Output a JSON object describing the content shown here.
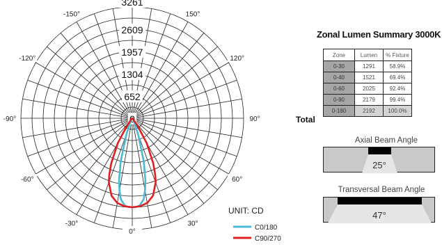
{
  "chart_data": {
    "type": "polar",
    "unit_label": "UNIT: CD",
    "radial_ticks": [
      3261,
      2609,
      1957,
      1304,
      652,
      0
    ],
    "angle_labels": [
      "-150°",
      "150°",
      "-120°",
      "120°",
      "-90°",
      "90°",
      "-60°",
      "60°",
      "-30°",
      "30°",
      "0°"
    ],
    "angle_values": [
      -150,
      150,
      -120,
      120,
      -90,
      90,
      -60,
      60,
      -30,
      30,
      0
    ],
    "series": [
      {
        "name": "C0/180",
        "color": "#4ab8d6",
        "points": [
          [
            -90,
            0
          ],
          [
            -60,
            0
          ],
          [
            -45,
            10
          ],
          [
            -30,
            60
          ],
          [
            -25,
            150
          ],
          [
            -20,
            500
          ],
          [
            -15,
            1300
          ],
          [
            -12,
            1850
          ],
          [
            -10,
            2150
          ],
          [
            -8,
            2400
          ],
          [
            -5,
            2560
          ],
          [
            -3,
            2600
          ],
          [
            0,
            2609
          ],
          [
            3,
            2600
          ],
          [
            5,
            2560
          ],
          [
            8,
            2400
          ],
          [
            10,
            2150
          ],
          [
            12,
            1850
          ],
          [
            15,
            1300
          ],
          [
            20,
            500
          ],
          [
            25,
            150
          ],
          [
            30,
            60
          ],
          [
            45,
            10
          ],
          [
            60,
            0
          ],
          [
            90,
            0
          ]
        ]
      },
      {
        "name": "C90/270",
        "color": "#e02020",
        "points": [
          [
            -90,
            0
          ],
          [
            -60,
            0
          ],
          [
            -45,
            40
          ],
          [
            -35,
            300
          ],
          [
            -30,
            850
          ],
          [
            -25,
            1450
          ],
          [
            -22,
            1800
          ],
          [
            -20,
            2000
          ],
          [
            -15,
            2350
          ],
          [
            -10,
            2520
          ],
          [
            -5,
            2590
          ],
          [
            0,
            2609
          ],
          [
            5,
            2590
          ],
          [
            10,
            2520
          ],
          [
            15,
            2350
          ],
          [
            20,
            2000
          ],
          [
            22,
            1800
          ],
          [
            25,
            1450
          ],
          [
            30,
            850
          ],
          [
            35,
            300
          ],
          [
            45,
            40
          ],
          [
            60,
            0
          ],
          [
            90,
            0
          ]
        ]
      }
    ],
    "r_max": 3261
  },
  "zonal": {
    "title": "Zonal Lumen Summary 3000K",
    "headers": [
      "Zone",
      "Lumen",
      "% Fixture"
    ],
    "rows": [
      [
        "0-30",
        "1291",
        "58.9%"
      ],
      [
        "0-40",
        "1521",
        "69.4%"
      ],
      [
        "0-60",
        "2025",
        "92.4%"
      ],
      [
        "0-90",
        "2179",
        "99.4%"
      ]
    ],
    "total_label": "Total",
    "total_row": [
      "0-180",
      "2192",
      "100.0%"
    ]
  },
  "axial": {
    "title": "Axial Beam Angle",
    "value": "25°"
  },
  "transversal": {
    "title": "Transversal Beam Angle",
    "value": "47°"
  }
}
